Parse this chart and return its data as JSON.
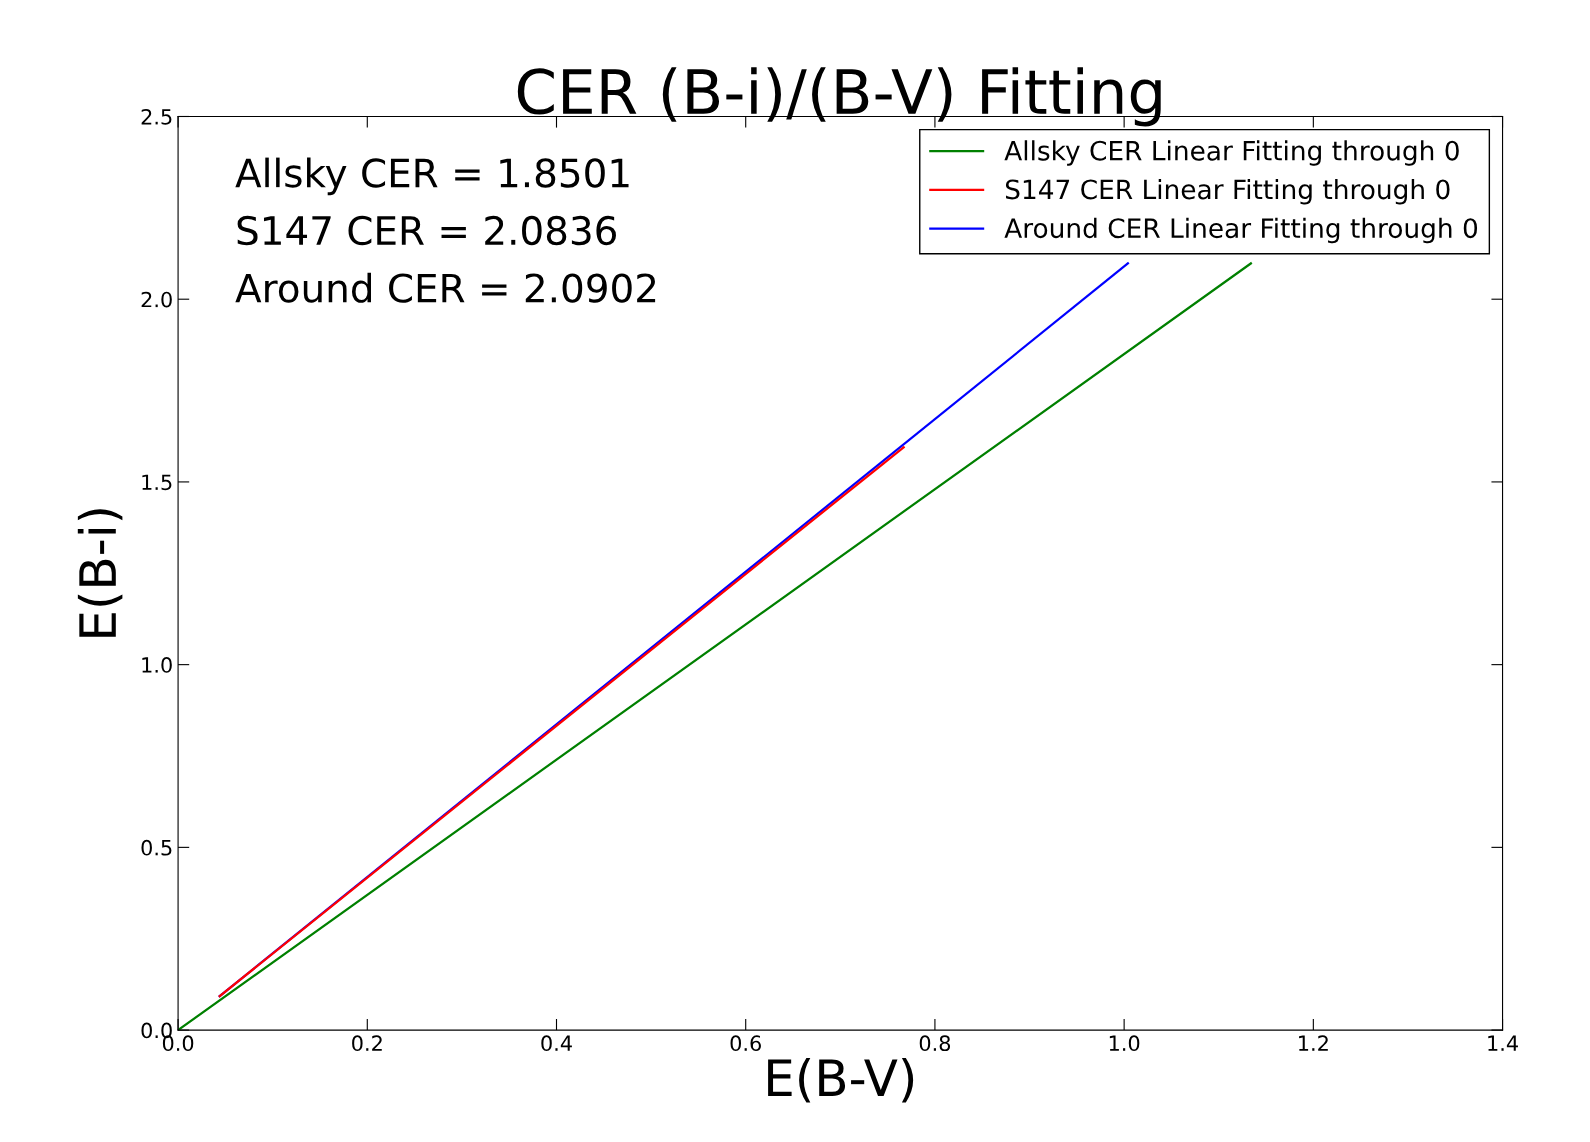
{
  "chart_data": {
    "type": "line",
    "title": "CER (B-i)/(B-V) Fitting",
    "xlabel": "E(B-V)",
    "ylabel": "E(B-i)",
    "xlim": [
      0,
      1.4
    ],
    "ylim": [
      0,
      2.5
    ],
    "xticks": [
      {
        "value": 0,
        "label": "0.0"
      },
      0.2,
      0.4,
      0.6,
      0.8,
      {
        "value": 1,
        "label": "1.0"
      },
      1.2,
      1.4
    ],
    "yticks": [
      {
        "value": 0,
        "label": "0.0"
      },
      0.5,
      {
        "value": 1,
        "label": "1.0"
      },
      1.5,
      {
        "value": 2,
        "label": "2.0"
      },
      2.5
    ],
    "series": [
      {
        "name": "Allsky CER Linear Fitting through 0",
        "color": "#008000",
        "x": [
          0,
          1.134
        ],
        "values": [
          0,
          2.098
        ]
      },
      {
        "name": "S147 CER Linear Fitting through 0",
        "color": "#ff0000",
        "x": [
          0.044,
          0.767
        ],
        "values": [
          0.093,
          1.595
        ]
      },
      {
        "name": "Around CER Linear Fitting through 0",
        "color": "#0000ff",
        "x": [
          0.044,
          1.004
        ],
        "values": [
          0.093,
          2.098
        ]
      }
    ],
    "annotations": [
      "Allsky CER = 1.8501",
      "S147 CER = 2.0836",
      "Around CER = 2.0902"
    ],
    "legend": "top right",
    "grid": false
  }
}
